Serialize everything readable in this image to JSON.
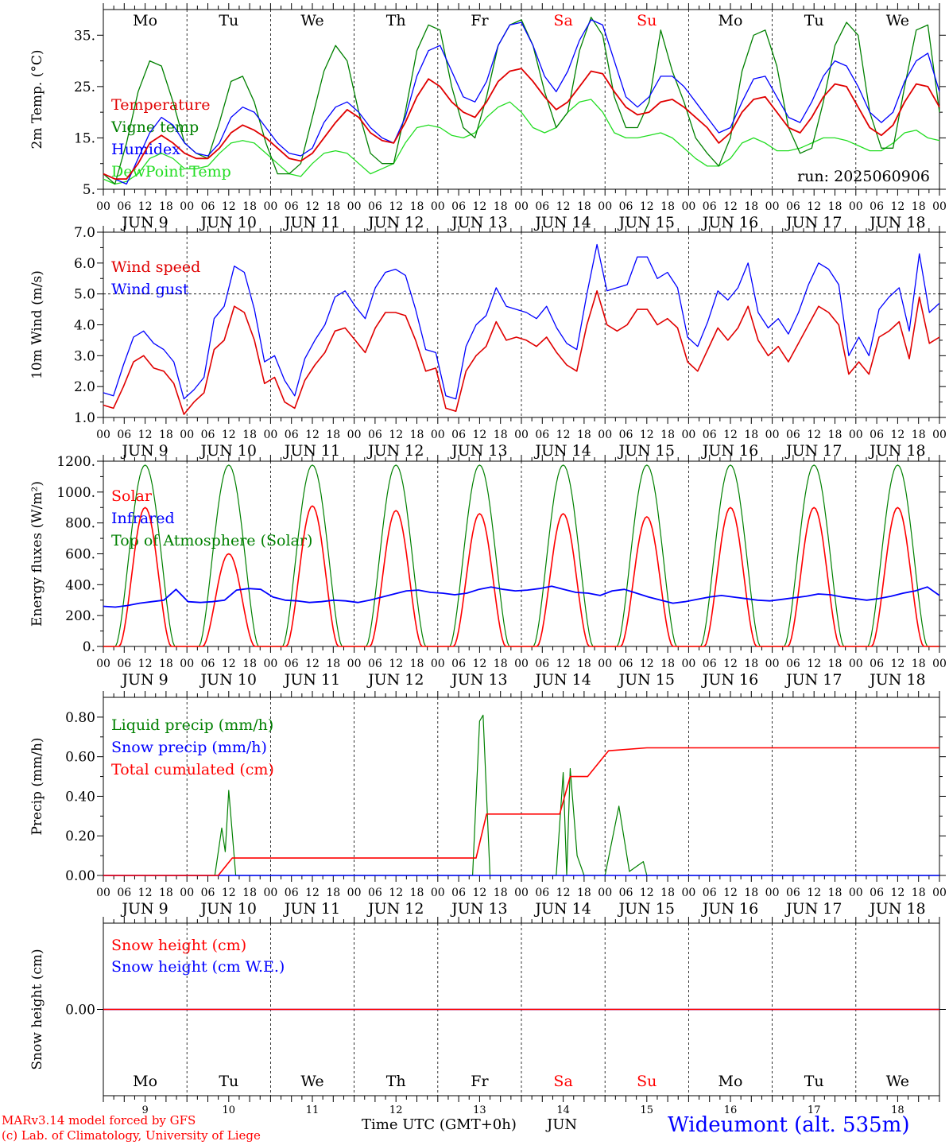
{
  "footer": {
    "model_line": "MARv3.14 model forced by GFS",
    "lab_line": "(c) Lab. of Climatology, University of Liege",
    "time_label": "Time UTC (GMT+0h)",
    "month_label": "JUN",
    "station": "Wideumont (alt. 535m)"
  },
  "colors": {
    "red": "#ff0000",
    "dark_red": "#e00000",
    "green": "#008000",
    "light_green": "#22dd22",
    "blue": "#0000ff",
    "weekend": "#ff0000",
    "axis": "#000000"
  },
  "axis": {
    "hour_ticks": [
      "00",
      "06",
      "12",
      "18"
    ],
    "final_tick": "00",
    "day_labels": [
      "JUN 9",
      "JUN 10",
      "JUN 11",
      "JUN 12",
      "JUN 13",
      "JUN 14",
      "JUN 15",
      "JUN 16",
      "JUN 17",
      "JUN 18"
    ],
    "weekdays": [
      "Mo",
      "Tu",
      "We",
      "Th",
      "Fr",
      "Sa",
      "Su",
      "Mo",
      "Tu",
      "We"
    ],
    "weekend_flags": [
      false,
      false,
      false,
      false,
      false,
      true,
      true,
      false,
      false,
      false
    ],
    "day_numbers": [
      "9",
      "10",
      "11",
      "12",
      "13",
      "14",
      "15",
      "16",
      "17",
      "18"
    ]
  },
  "chart_data": [
    {
      "type": "line",
      "ylabel": "2m Temp. (°C)",
      "ylim": [
        5,
        40
      ],
      "yticks": [
        "5.",
        "15.",
        "25.",
        "35."
      ],
      "ytick_values": [
        5,
        15,
        25,
        35
      ],
      "x": "hours since 00 UTC JUN 9, 3-hourly from 0 to 240",
      "run_label": "run: 2025060906",
      "grid": "vertical dashed lines at 00 UTC",
      "series": [
        {
          "name": "Temperature",
          "color": "#e00000",
          "values": [
            8,
            7,
            7,
            10,
            14,
            15.5,
            14,
            12,
            11,
            11,
            13,
            16,
            17.5,
            16.5,
            15,
            13,
            11,
            10.5,
            12,
            15,
            18,
            20.5,
            19,
            16,
            14.5,
            14,
            18,
            23,
            26.5,
            25,
            22,
            20,
            19,
            22,
            26,
            28,
            28.5,
            26,
            23,
            20.5,
            22,
            25,
            28,
            27.5,
            24,
            21,
            19.5,
            20,
            22,
            22.5,
            21,
            19,
            17,
            14,
            16,
            20,
            22.5,
            23,
            20,
            17,
            16,
            19,
            23,
            25.5,
            25,
            21,
            17,
            15.5,
            17.5,
            22,
            25.5,
            25,
            21
          ]
        },
        {
          "name": "Vigne temp",
          "color": "#008000",
          "values": [
            8,
            6,
            14,
            24,
            30,
            29,
            22,
            14,
            12,
            11,
            18,
            26,
            27,
            22,
            14,
            8,
            8,
            10,
            19,
            28,
            33,
            30,
            20,
            12,
            10,
            10,
            20,
            32,
            37,
            36,
            25,
            17,
            15,
            23,
            33,
            37,
            38,
            33,
            24,
            17,
            20,
            32,
            38.5,
            35,
            23,
            17,
            17,
            22,
            36,
            28,
            22,
            15,
            12,
            9.5,
            15,
            28,
            35,
            36,
            29,
            17,
            12,
            13,
            22,
            33,
            37.5,
            35,
            20,
            13,
            13,
            25,
            36,
            37,
            20
          ]
        },
        {
          "name": "Humidex",
          "color": "#0000ff",
          "values": [
            8,
            7,
            6,
            11,
            16,
            19,
            17.5,
            14,
            12,
            11.5,
            14,
            19,
            21,
            20,
            17,
            14,
            12,
            11.5,
            13,
            18,
            21,
            22,
            20,
            17,
            15,
            14,
            19,
            27,
            32,
            33,
            28,
            23,
            22,
            26,
            33,
            37,
            37.5,
            33,
            27,
            24,
            28,
            34,
            38,
            37,
            30,
            23,
            21,
            23,
            27,
            27,
            25,
            22,
            19,
            16,
            17,
            22,
            26.5,
            27,
            23,
            19,
            18,
            22,
            27,
            30,
            29,
            25,
            20,
            18,
            20,
            26,
            30,
            31.5,
            24
          ]
        },
        {
          "name": "DewPoint Temp",
          "color": "#22dd22",
          "values": [
            7,
            6,
            6.5,
            8,
            11,
            12,
            11,
            9,
            9,
            9.5,
            12,
            14,
            14.5,
            14,
            12,
            10,
            8,
            7.5,
            10,
            12,
            12.5,
            12,
            10,
            8,
            9,
            10,
            14,
            17,
            17.5,
            17,
            15.5,
            15,
            16,
            19,
            21,
            22,
            20,
            17,
            16,
            17,
            20,
            22,
            22.5,
            20,
            16,
            15,
            15,
            15.5,
            16,
            15,
            13,
            11,
            9.5,
            9.5,
            11,
            14,
            15,
            14,
            12.5,
            12.5,
            13,
            14,
            15,
            15,
            14.5,
            13.5,
            12.5,
            12.5,
            14,
            16,
            16.5,
            15,
            14.5
          ]
        }
      ]
    },
    {
      "type": "line",
      "ylabel": "10m Wind (m/s)",
      "ylim": [
        1,
        7
      ],
      "yticks": [
        "1.0",
        "2.0",
        "3.0",
        "4.0",
        "5.0",
        "6.0",
        "7.0"
      ],
      "ytick_values": [
        1,
        2,
        3,
        4,
        5,
        6,
        7
      ],
      "reference_line": 5,
      "series": [
        {
          "name": "Wind speed",
          "color": "#e00000",
          "values": [
            1.4,
            1.3,
            2.0,
            2.8,
            3.0,
            2.6,
            2.5,
            2.1,
            1.1,
            1.5,
            1.8,
            3.2,
            3.5,
            4.6,
            4.4,
            3.5,
            2.1,
            2.3,
            1.5,
            1.3,
            2.2,
            2.7,
            3.1,
            3.8,
            3.9,
            3.5,
            3.1,
            3.9,
            4.4,
            4.4,
            4.3,
            3.5,
            2.5,
            2.6,
            1.3,
            1.2,
            2.5,
            3.0,
            3.3,
            4.1,
            3.5,
            3.6,
            3.5,
            3.3,
            3.6,
            3.1,
            2.7,
            2.5,
            4.0,
            5.1,
            4.0,
            3.8,
            4.0,
            4.5,
            4.5,
            4.0,
            4.2,
            3.9,
            2.8,
            2.5,
            3.2,
            3.9,
            3.5,
            3.9,
            4.6,
            3.5,
            3.0,
            3.3,
            2.8,
            3.4,
            4.0,
            4.6,
            4.4,
            4.0,
            2.4,
            2.8,
            2.4,
            3.6,
            3.8,
            4.1,
            2.9,
            4.9,
            3.4,
            3.6
          ]
        },
        {
          "name": "Wind gust",
          "color": "#0000ff",
          "values": [
            1.8,
            1.7,
            2.7,
            3.6,
            3.8,
            3.4,
            3.2,
            2.8,
            1.6,
            1.9,
            2.3,
            4.2,
            4.6,
            5.9,
            5.7,
            4.5,
            2.8,
            3.0,
            2.2,
            1.7,
            2.9,
            3.5,
            4.0,
            4.9,
            5.1,
            4.6,
            4.2,
            5.2,
            5.7,
            5.8,
            5.6,
            4.5,
            3.2,
            3.1,
            1.7,
            1.6,
            3.3,
            4.0,
            4.3,
            5.2,
            4.6,
            4.5,
            4.4,
            4.2,
            4.6,
            3.9,
            3.4,
            3.2,
            5.0,
            6.6,
            5.1,
            5.2,
            5.3,
            6.2,
            6.2,
            5.5,
            5.7,
            5.2,
            3.6,
            3.3,
            4.1,
            5.1,
            4.8,
            5.2,
            6.0,
            4.4,
            3.9,
            4.2,
            3.7,
            4.4,
            5.3,
            6.0,
            5.8,
            5.3,
            3.0,
            3.6,
            3.0,
            4.5,
            4.9,
            5.2,
            3.8,
            6.3,
            4.4,
            4.7
          ]
        }
      ]
    },
    {
      "type": "line",
      "ylabel": "Energy fluxes (W/m²)",
      "ylim": [
        0,
        1200
      ],
      "yticks": [
        "0.",
        "200.",
        "400.",
        "600.",
        "800.",
        "1000.",
        "1200."
      ],
      "ytick_values": [
        0,
        200,
        400,
        600,
        800,
        1000,
        1200
      ],
      "series": [
        {
          "name": "Solar",
          "color": "#ff0000",
          "daily_peaks": [
            900,
            600,
            910,
            880,
            860,
            860,
            840,
            900,
            900,
            900
          ]
        },
        {
          "name": "Infrared",
          "color": "#0000ff",
          "values": [
            260,
            255,
            265,
            280,
            290,
            300,
            370,
            290,
            285,
            290,
            300,
            365,
            375,
            370,
            320,
            300,
            295,
            285,
            290,
            300,
            295,
            285,
            300,
            320,
            340,
            360,
            365,
            350,
            345,
            335,
            345,
            370,
            385,
            370,
            360,
            365,
            375,
            390,
            370,
            350,
            345,
            330,
            360,
            370,
            345,
            320,
            300,
            280,
            290,
            305,
            320,
            330,
            320,
            310,
            300,
            295,
            305,
            315,
            325,
            340,
            335,
            320,
            310,
            300,
            310,
            325,
            345,
            360,
            385,
            330
          ]
        },
        {
          "name": "Top of Atmosphere (Solar)",
          "color": "#008000",
          "daily_peak": 1175
        }
      ]
    },
    {
      "type": "line",
      "ylabel": "Precip (mm/h)",
      "ylim": [
        0,
        0.9
      ],
      "yticks": [
        "0.00",
        "0.20",
        "0.40",
        "0.60",
        "0.80"
      ],
      "ytick_values": [
        0,
        0.2,
        0.4,
        0.6,
        0.8
      ],
      "series": [
        {
          "name": "Liquid precip (mm/h)",
          "color": "#008000",
          "events": [
            [
              32,
              0
            ],
            [
              34,
              0.24
            ],
            [
              35,
              0.12
            ],
            [
              36,
              0.43
            ],
            [
              38,
              0
            ],
            [
              106,
              0
            ],
            [
              108,
              0.78
            ],
            [
              109,
              0.81
            ],
            [
              111,
              0
            ],
            [
              130,
              0
            ],
            [
              132,
              0.52
            ],
            [
              133,
              0
            ],
            [
              134,
              0.54
            ],
            [
              136,
              0.1
            ],
            [
              138,
              0
            ],
            [
              144,
              0
            ],
            [
              148,
              0.35
            ],
            [
              151,
              0.02
            ],
            [
              155,
              0.07
            ],
            [
              156,
              0
            ]
          ]
        },
        {
          "name": "Snow precip (mm/h)",
          "color": "#0000ff",
          "values": [
            0
          ]
        },
        {
          "name": "Total cumulated (cm)",
          "color": "#ff0000",
          "steps": [
            [
              0,
              0
            ],
            [
              33,
              0
            ],
            [
              37,
              0.088
            ],
            [
              107,
              0.088
            ],
            [
              110,
              0.31
            ],
            [
              131,
              0.31
            ],
            [
              134,
              0.5
            ],
            [
              139,
              0.5
            ],
            [
              145,
              0.63
            ],
            [
              156,
              0.645
            ],
            [
              240,
              0.645
            ]
          ]
        }
      ]
    },
    {
      "type": "line",
      "ylabel": "Snow height (cm)",
      "ylim": [
        -1,
        1
      ],
      "yticks": [
        "0.00"
      ],
      "ytick_values": [
        0
      ],
      "series": [
        {
          "name": "Snow height (cm)",
          "color": "#ff0000",
          "values": [
            0
          ]
        },
        {
          "name": "Snow height (cm W.E.)",
          "color": "#0000ff",
          "values": [
            0
          ]
        }
      ]
    }
  ]
}
